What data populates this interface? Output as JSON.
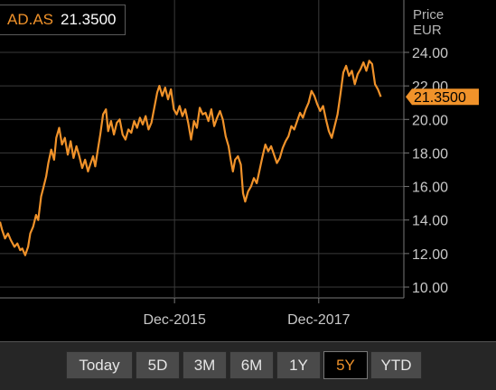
{
  "ticker": {
    "symbol": "AD.AS",
    "value": "21.3500"
  },
  "axis_title": {
    "line1": "Price",
    "line2": "EUR"
  },
  "range_buttons": [
    {
      "label": "Today",
      "active": false
    },
    {
      "label": "5D",
      "active": false
    },
    {
      "label": "3M",
      "active": false
    },
    {
      "label": "6M",
      "active": false
    },
    {
      "label": "1Y",
      "active": false
    },
    {
      "label": "5Y",
      "active": true
    },
    {
      "label": "YTD",
      "active": false
    }
  ],
  "colors": {
    "line": "#f0922a",
    "grid": "#3a3a3a",
    "tick_text": "#c8c8c8",
    "background": "#000000"
  },
  "chart_data": {
    "type": "line",
    "ylabel": "Price EUR",
    "ylim": [
      9.0,
      25.5
    ],
    "xlim": [
      2013.5,
      2019.1
    ],
    "grid": true,
    "y_ticks": [
      "10.00",
      "12.00",
      "14.00",
      "16.00",
      "18.00",
      "20.00",
      "22.00",
      "24.00"
    ],
    "y_tick_values": [
      10,
      12,
      14,
      16,
      18,
      20,
      22,
      24
    ],
    "x_ticks": [
      {
        "label": "Dec-2015",
        "value": 2015.92
      },
      {
        "label": "Dec-2017",
        "value": 2017.92
      }
    ],
    "last_value_label": "21.3500",
    "last_value": 21.35,
    "series": [
      {
        "values": [
          [
            2013.5,
            13.9
          ],
          [
            2013.53,
            13.4
          ],
          [
            2013.57,
            12.9
          ],
          [
            2013.61,
            13.2
          ],
          [
            2013.65,
            12.8
          ],
          [
            2013.7,
            12.4
          ],
          [
            2013.74,
            12.6
          ],
          [
            2013.78,
            12.2
          ],
          [
            2013.81,
            12.3
          ],
          [
            2013.85,
            11.9
          ],
          [
            2013.89,
            12.4
          ],
          [
            2013.92,
            13.2
          ],
          [
            2013.96,
            13.6
          ],
          [
            2014.0,
            14.3
          ],
          [
            2014.03,
            14.0
          ],
          [
            2014.07,
            15.4
          ],
          [
            2014.1,
            15.9
          ],
          [
            2014.14,
            16.6
          ],
          [
            2014.17,
            17.4
          ],
          [
            2014.21,
            18.2
          ],
          [
            2014.25,
            17.6
          ],
          [
            2014.28,
            18.9
          ],
          [
            2014.32,
            19.5
          ],
          [
            2014.36,
            18.5
          ],
          [
            2014.4,
            18.9
          ],
          [
            2014.44,
            17.9
          ],
          [
            2014.48,
            18.7
          ],
          [
            2014.52,
            17.7
          ],
          [
            2014.56,
            18.4
          ],
          [
            2014.6,
            17.8
          ],
          [
            2014.64,
            17.1
          ],
          [
            2014.68,
            17.6
          ],
          [
            2014.72,
            16.9
          ],
          [
            2014.75,
            17.3
          ],
          [
            2014.79,
            17.8
          ],
          [
            2014.82,
            17.2
          ],
          [
            2014.86,
            18.3
          ],
          [
            2014.89,
            19.1
          ],
          [
            2014.93,
            20.3
          ],
          [
            2014.97,
            20.6
          ],
          [
            2015.0,
            19.3
          ],
          [
            2015.04,
            19.9
          ],
          [
            2015.08,
            19.1
          ],
          [
            2015.12,
            19.8
          ],
          [
            2015.16,
            20.0
          ],
          [
            2015.2,
            19.1
          ],
          [
            2015.24,
            18.8
          ],
          [
            2015.28,
            19.4
          ],
          [
            2015.32,
            19.2
          ],
          [
            2015.36,
            19.9
          ],
          [
            2015.4,
            19.5
          ],
          [
            2015.44,
            20.1
          ],
          [
            2015.48,
            19.7
          ],
          [
            2015.52,
            20.2
          ],
          [
            2015.56,
            19.4
          ],
          [
            2015.6,
            19.8
          ],
          [
            2015.64,
            20.7
          ],
          [
            2015.68,
            21.6
          ],
          [
            2015.71,
            22.0
          ],
          [
            2015.75,
            21.4
          ],
          [
            2015.79,
            21.9
          ],
          [
            2015.83,
            21.2
          ],
          [
            2015.87,
            21.8
          ],
          [
            2015.91,
            20.6
          ],
          [
            2015.95,
            20.3
          ],
          [
            2015.99,
            20.8
          ],
          [
            2016.03,
            20.2
          ],
          [
            2016.07,
            20.6
          ],
          [
            2016.11,
            19.8
          ],
          [
            2016.15,
            18.8
          ],
          [
            2016.19,
            19.9
          ],
          [
            2016.23,
            19.5
          ],
          [
            2016.27,
            20.7
          ],
          [
            2016.31,
            20.3
          ],
          [
            2016.35,
            20.4
          ],
          [
            2016.39,
            19.9
          ],
          [
            2016.43,
            20.6
          ],
          [
            2016.47,
            19.6
          ],
          [
            2016.51,
            20.1
          ],
          [
            2016.55,
            20.5
          ],
          [
            2016.59,
            20.0
          ],
          [
            2016.63,
            19.0
          ],
          [
            2016.67,
            18.4
          ],
          [
            2016.7,
            17.6
          ],
          [
            2016.73,
            16.9
          ],
          [
            2016.76,
            17.6
          ],
          [
            2016.8,
            17.8
          ],
          [
            2016.84,
            17.3
          ],
          [
            2016.87,
            15.6
          ],
          [
            2016.9,
            15.1
          ],
          [
            2016.94,
            15.7
          ],
          [
            2016.98,
            16.0
          ],
          [
            2017.02,
            16.5
          ],
          [
            2017.06,
            16.2
          ],
          [
            2017.1,
            17.0
          ],
          [
            2017.14,
            17.8
          ],
          [
            2017.18,
            18.5
          ],
          [
            2017.22,
            18.1
          ],
          [
            2017.26,
            18.4
          ],
          [
            2017.3,
            17.9
          ],
          [
            2017.34,
            17.4
          ],
          [
            2017.38,
            17.7
          ],
          [
            2017.42,
            18.3
          ],
          [
            2017.46,
            18.7
          ],
          [
            2017.5,
            19.0
          ],
          [
            2017.54,
            19.6
          ],
          [
            2017.58,
            19.4
          ],
          [
            2017.62,
            19.9
          ],
          [
            2017.66,
            20.4
          ],
          [
            2017.7,
            20.1
          ],
          [
            2017.74,
            20.6
          ],
          [
            2017.78,
            21.0
          ],
          [
            2017.82,
            21.7
          ],
          [
            2017.86,
            21.4
          ],
          [
            2017.9,
            20.9
          ],
          [
            2017.94,
            20.5
          ],
          [
            2017.98,
            20.8
          ],
          [
            2018.02,
            20.0
          ],
          [
            2018.06,
            19.3
          ],
          [
            2018.1,
            18.9
          ],
          [
            2018.14,
            19.6
          ],
          [
            2018.18,
            20.3
          ],
          [
            2018.22,
            21.5
          ],
          [
            2018.26,
            22.8
          ],
          [
            2018.3,
            23.2
          ],
          [
            2018.34,
            22.6
          ],
          [
            2018.38,
            22.9
          ],
          [
            2018.42,
            22.1
          ],
          [
            2018.46,
            22.7
          ],
          [
            2018.5,
            23.0
          ],
          [
            2018.54,
            23.4
          ],
          [
            2018.58,
            22.9
          ],
          [
            2018.62,
            23.5
          ],
          [
            2018.66,
            23.3
          ],
          [
            2018.7,
            22.1
          ],
          [
            2018.74,
            21.8
          ],
          [
            2018.78,
            21.35
          ]
        ]
      }
    ]
  }
}
